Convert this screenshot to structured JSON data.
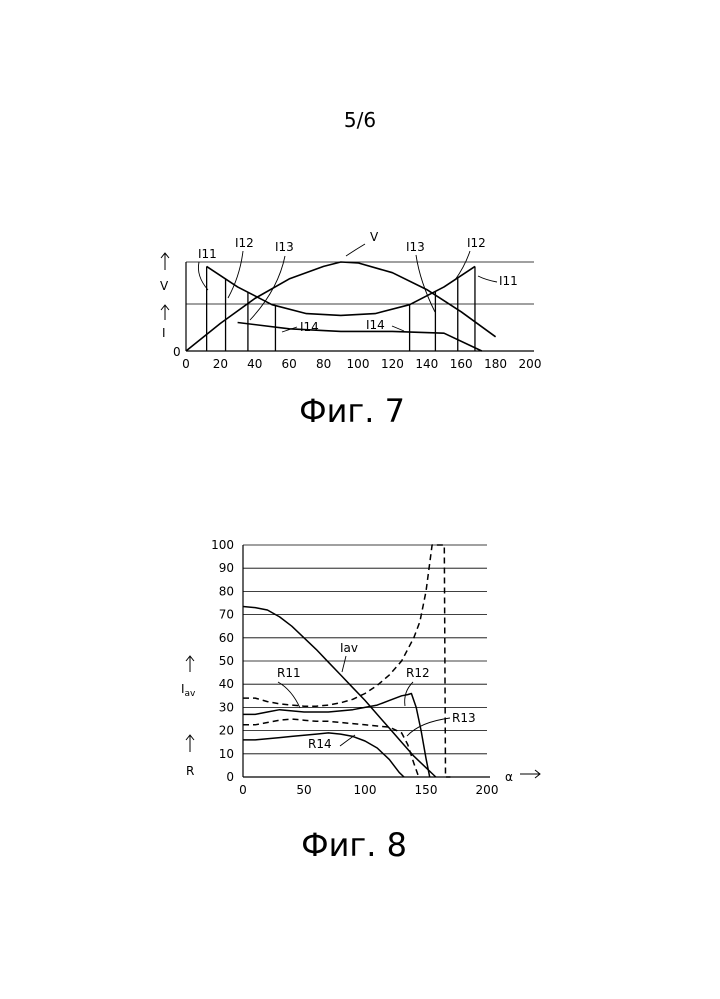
{
  "page_number": "5/6",
  "chart_data": [
    {
      "type": "line",
      "caption": "Фиг. 7",
      "x_ticks": [
        "0",
        "20",
        "40",
        "60",
        "80",
        "100",
        "120",
        "140",
        "160",
        "180",
        "200"
      ],
      "xlim": [
        0,
        200
      ],
      "y_axis_labels": [
        "V",
        "I"
      ],
      "y_origin_label": "0",
      "curve_labels": [
        {
          "id": "v",
          "text": "V"
        },
        {
          "id": "i11_left",
          "text": "I11"
        },
        {
          "id": "i12_left",
          "text": "I12"
        },
        {
          "id": "i13_left",
          "text": "I13"
        },
        {
          "id": "i14_left",
          "text": "I14"
        },
        {
          "id": "i14_right",
          "text": "I14"
        },
        {
          "id": "i13_right",
          "text": "I13"
        },
        {
          "id": "i12_right",
          "text": "I12"
        },
        {
          "id": "i11_right",
          "text": "I11"
        }
      ],
      "series": [
        {
          "id": "voltage",
          "x": [
            0,
            20,
            40,
            60,
            80,
            90,
            100,
            120,
            140,
            160,
            180
          ],
          "y": [
            0,
            0.31,
            0.59,
            0.81,
            0.95,
            1.0,
            0.99,
            0.88,
            0.69,
            0.44,
            0.16
          ]
        },
        {
          "id": "current_envelope",
          "x": [
            12,
            30,
            50,
            70,
            90,
            110,
            130,
            150,
            168
          ],
          "y": [
            0.95,
            0.72,
            0.52,
            0.42,
            0.4,
            0.42,
            0.52,
            0.72,
            0.95
          ]
        },
        {
          "id": "current_falling",
          "x": [
            30,
            60,
            90,
            120,
            150,
            172
          ],
          "y": [
            0.32,
            0.25,
            0.22,
            0.22,
            0.2,
            0.0
          ]
        }
      ],
      "step_positions_x": [
        12,
        23,
        36,
        52,
        130,
        145,
        158,
        168
      ]
    },
    {
      "type": "line",
      "caption": "Фиг. 8",
      "x_ticks": [
        "0",
        "50",
        "100",
        "150",
        "200"
      ],
      "y_ticks": [
        "0",
        "10",
        "20",
        "30",
        "40",
        "50",
        "60",
        "70",
        "80",
        "90",
        "100"
      ],
      "xlim": [
        0,
        200
      ],
      "ylim": [
        0,
        100
      ],
      "x_axis_label": "α",
      "y_axis_labels": [
        "Iav",
        "R"
      ],
      "curve_labels": [
        {
          "id": "iav",
          "text": "Iav"
        },
        {
          "id": "r11",
          "text": "R11"
        },
        {
          "id": "r12",
          "text": "R12"
        },
        {
          "id": "r13",
          "text": "R13"
        },
        {
          "id": "r14",
          "text": "R14"
        }
      ],
      "series": [
        {
          "id": "iav",
          "dash": false,
          "x": [
            0,
            10,
            20,
            30,
            40,
            50,
            60,
            70,
            80,
            90,
            100,
            110,
            120,
            130,
            140,
            150,
            155,
            158
          ],
          "y": [
            73.5,
            73,
            72,
            69,
            65,
            60,
            55,
            49.5,
            44,
            38.5,
            33,
            27,
            21,
            15,
            9,
            4,
            1.5,
            0
          ]
        },
        {
          "id": "r11",
          "dash": true,
          "x": [
            0,
            10,
            20,
            30,
            40,
            50,
            60,
            70,
            80,
            90,
            100,
            110,
            120,
            130,
            140,
            145,
            150,
            155,
            160,
            165,
            166,
            170
          ],
          "y": [
            34,
            34,
            32.5,
            31.5,
            31,
            30.5,
            30.5,
            31,
            32,
            33.5,
            36,
            39.5,
            44,
            50,
            60,
            67,
            80,
            100,
            100,
            100,
            0,
            0
          ]
        },
        {
          "id": "r12",
          "dash": false,
          "x": [
            0,
            10,
            20,
            30,
            40,
            50,
            60,
            70,
            80,
            90,
            100,
            110,
            120,
            130,
            135,
            138,
            142,
            146,
            150,
            153
          ],
          "y": [
            27,
            27,
            28,
            29,
            28.5,
            28,
            28,
            28,
            28.5,
            29,
            30,
            31,
            33,
            35,
            35.5,
            36,
            30,
            20,
            8,
            0
          ]
        },
        {
          "id": "r13",
          "dash": true,
          "x": [
            0,
            10,
            20,
            30,
            40,
            50,
            60,
            70,
            80,
            90,
            100,
            110,
            120,
            130,
            135,
            140,
            144
          ],
          "y": [
            22.5,
            22.5,
            23.5,
            24.5,
            25,
            24.5,
            24,
            24,
            23.5,
            23,
            22.5,
            22,
            21.5,
            19,
            14,
            6,
            0
          ]
        },
        {
          "id": "r14",
          "dash": false,
          "x": [
            0,
            10,
            20,
            30,
            40,
            50,
            60,
            70,
            80,
            90,
            100,
            110,
            120,
            128,
            132
          ],
          "y": [
            16,
            16,
            16.5,
            17,
            17.5,
            18,
            18.5,
            19,
            18.5,
            17.5,
            15.5,
            12.5,
            7.5,
            2,
            0
          ]
        }
      ]
    }
  ]
}
